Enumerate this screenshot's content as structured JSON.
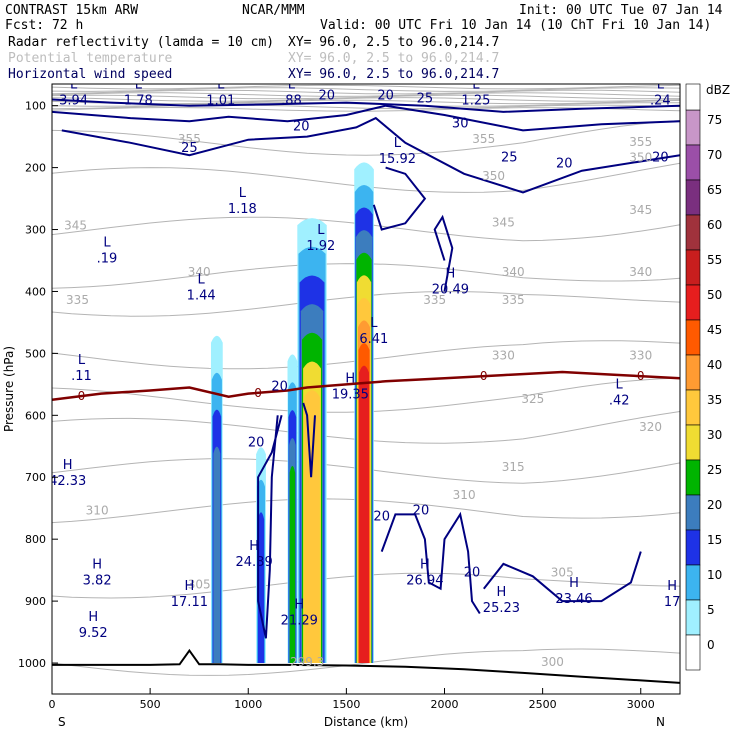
{
  "header": {
    "model": "CONTRAST 15km ARW",
    "org": "NCAR/MMM",
    "init": "Init: 00 UTC Tue 07 Jan 14",
    "fcst": "Fcst:   72 h",
    "valid": "Valid: 00 UTC Fri 10 Jan 14 (10 ChT Fri 10 Jan 14)",
    "fields": [
      {
        "name": "Radar reflectivity (lamda = 10 cm)",
        "xy": "XY=  96.0,  2.5 to  96.0,214.7"
      },
      {
        "name": "Potential temperature",
        "xy": "XY=  96.0,  2.5 to  96.0,214.7"
      },
      {
        "name": "Horizontal wind speed",
        "xy": "XY=  96.0,  2.5 to  96.0,214.7"
      }
    ]
  },
  "colors": {
    "wind": "#000080",
    "theta": "#b4b4b4",
    "freezing": "#800000",
    "terrain": "#000000"
  },
  "chart_data": {
    "type": "heatmap",
    "title": "Radar reflectivity (lamda = 10 cm)",
    "xlabel": "Distance (km)",
    "ylabel": "Pressure (hPa)",
    "xlim": [
      0,
      3200
    ],
    "ylim": [
      1050,
      65
    ],
    "x_ticks": [
      0,
      500,
      1000,
      1500,
      2000,
      2500,
      3000
    ],
    "y_ticks": [
      100,
      200,
      300,
      400,
      500,
      600,
      700,
      800,
      900,
      1000
    ],
    "x_end_labels": {
      "left": "S",
      "right": "N"
    },
    "colorbar": {
      "unit": "dBZ",
      "levels": [
        75,
        70,
        65,
        60,
        55,
        50,
        45,
        40,
        35,
        30,
        25,
        20,
        15,
        10,
        5,
        0
      ],
      "colors": [
        "#c896c8",
        "#9b4fa8",
        "#7a2f7f",
        "#a0323c",
        "#c81e1e",
        "#e61e1e",
        "#ff5a00",
        "#ff9b32",
        "#ffc83c",
        "#f0dc32",
        "#00b400",
        "#3c7dbe",
        "#1e32e6",
        "#3cb4f0",
        "#a0f0ff",
        "#ffffff"
      ]
    },
    "reflectivity_columns": [
      {
        "x0": 810,
        "x1": 870,
        "top": 470,
        "bottom": 1000,
        "core_dbz": 20
      },
      {
        "x0": 1040,
        "x1": 1090,
        "top": 650,
        "bottom": 1000,
        "core_dbz": 15
      },
      {
        "x0": 1200,
        "x1": 1250,
        "top": 500,
        "bottom": 1000,
        "core_dbz": 25
      },
      {
        "x0": 1250,
        "x1": 1400,
        "top": 280,
        "bottom": 1000,
        "core_dbz": 35
      },
      {
        "x0": 1540,
        "x1": 1640,
        "top": 190,
        "bottom": 1000,
        "core_dbz": 50
      }
    ],
    "freezing_level": {
      "label": "0",
      "x": [
        0,
        250,
        500,
        700,
        900,
        1000,
        1200,
        1300,
        1500,
        1700,
        2000,
        2300,
        2600,
        2900,
        3200
      ],
      "p": [
        575,
        565,
        560,
        555,
        570,
        565,
        560,
        555,
        550,
        545,
        540,
        535,
        530,
        535,
        540
      ]
    },
    "theta_labels": [
      {
        "text": "355",
        "x": 700,
        "p": 160
      },
      {
        "text": "355",
        "x": 2200,
        "p": 160
      },
      {
        "text": "355",
        "x": 3000,
        "p": 165
      },
      {
        "text": "350",
        "x": 2250,
        "p": 220
      },
      {
        "text": "350",
        "x": 3000,
        "p": 190
      },
      {
        "text": "345",
        "x": 120,
        "p": 300
      },
      {
        "text": "345",
        "x": 2300,
        "p": 295
      },
      {
        "text": "345",
        "x": 3000,
        "p": 275
      },
      {
        "text": "340",
        "x": 750,
        "p": 375
      },
      {
        "text": "340",
        "x": 2350,
        "p": 375
      },
      {
        "text": "340",
        "x": 3000,
        "p": 375
      },
      {
        "text": "335",
        "x": 130,
        "p": 420
      },
      {
        "text": "335",
        "x": 1950,
        "p": 420
      },
      {
        "text": "335",
        "x": 2350,
        "p": 420
      },
      {
        "text": "330",
        "x": 2300,
        "p": 510
      },
      {
        "text": "330",
        "x": 3000,
        "p": 510
      },
      {
        "text": "325",
        "x": 2450,
        "p": 580
      },
      {
        "text": "320",
        "x": 3050,
        "p": 625
      },
      {
        "text": "315",
        "x": 2350,
        "p": 690
      },
      {
        "text": "310",
        "x": 230,
        "p": 760
      },
      {
        "text": "310",
        "x": 2100,
        "p": 735
      },
      {
        "text": "305",
        "x": 750,
        "p": 880
      },
      {
        "text": "305",
        "x": 2600,
        "p": 860
      },
      {
        "text": "300",
        "x": 2550,
        "p": 1005
      },
      {
        "text": "299.3",
        "x": 1300,
        "p": 1005
      }
    ],
    "wind_labels": [
      {
        "text": "25",
        "x": 700,
        "p": 175
      },
      {
        "text": "20",
        "x": 1270,
        "p": 140
      },
      {
        "text": "20",
        "x": 1400,
        "p": 90
      },
      {
        "text": "20",
        "x": 1700,
        "p": 90
      },
      {
        "text": "25",
        "x": 1900,
        "p": 95
      },
      {
        "text": "30",
        "x": 2080,
        "p": 135
      },
      {
        "text": "25",
        "x": 2330,
        "p": 190
      },
      {
        "text": "20",
        "x": 2610,
        "p": 200
      },
      {
        "text": "20",
        "x": 3100,
        "p": 190
      },
      {
        "text": "20",
        "x": 1160,
        "p": 560
      },
      {
        "text": "20",
        "x": 1040,
        "p": 650
      },
      {
        "text": "20",
        "x": 1680,
        "p": 770
      },
      {
        "text": "20",
        "x": 1880,
        "p": 760
      },
      {
        "text": "20",
        "x": 2140,
        "p": 860
      }
    ],
    "extrema": [
      {
        "type": "L",
        "value": "3.94",
        "x": 110,
        "p": 85
      },
      {
        "type": "L",
        "value": "1.78",
        "x": 440,
        "p": 85
      },
      {
        "type": "L",
        "value": "1.01",
        "x": 860,
        "p": 85
      },
      {
        "type": "L",
        "value": ".88",
        "x": 1220,
        "p": 85
      },
      {
        "type": "L",
        "value": "1.25",
        "x": 2160,
        "p": 85
      },
      {
        "type": "L",
        "value": ".24",
        "x": 3100,
        "p": 85
      },
      {
        "type": "L",
        "value": "15.92",
        "x": 1760,
        "p": 180
      },
      {
        "type": "L",
        "value": "1.18",
        "x": 970,
        "p": 260
      },
      {
        "type": "L",
        "value": "1.92",
        "x": 1370,
        "p": 320
      },
      {
        "type": "L",
        "value": ".19",
        "x": 280,
        "p": 340
      },
      {
        "type": "L",
        "value": "1.44",
        "x": 760,
        "p": 400
      },
      {
        "type": "L",
        "value": "6.41",
        "x": 1640,
        "p": 470
      },
      {
        "type": "L",
        "value": ".11",
        "x": 150,
        "p": 530
      },
      {
        "type": "L",
        "value": ".42",
        "x": 2890,
        "p": 570
      },
      {
        "type": "H",
        "value": "20.49",
        "x": 2030,
        "p": 390
      },
      {
        "type": "H",
        "value": "19.35",
        "x": 1520,
        "p": 560
      },
      {
        "type": "H",
        "value": "42.33",
        "x": 80,
        "p": 700
      },
      {
        "type": "H",
        "value": "24.39",
        "x": 1030,
        "p": 830
      },
      {
        "type": "H",
        "value": "3.82",
        "x": 230,
        "p": 860
      },
      {
        "type": "H",
        "value": "26.94",
        "x": 1900,
        "p": 860
      },
      {
        "type": "H",
        "value": "17.11",
        "x": 700,
        "p": 895
      },
      {
        "type": "H",
        "value": "21.29",
        "x": 1260,
        "p": 925
      },
      {
        "type": "H",
        "value": "25.23",
        "x": 2290,
        "p": 905
      },
      {
        "type": "H",
        "value": "23.46",
        "x": 2660,
        "p": 890
      },
      {
        "type": "H",
        "value": "17",
        "x": 3160,
        "p": 895
      },
      {
        "type": "H",
        "value": "9.52",
        "x": 210,
        "p": 945
      }
    ],
    "terrain_profile": {
      "x": [
        0,
        500,
        650,
        700,
        750,
        850,
        1000,
        1200,
        1500,
        1800,
        2100,
        2400,
        2700,
        3000,
        3200
      ],
      "p": [
        1003,
        1003,
        1002,
        980,
        1002,
        1002,
        1003,
        1003,
        1004,
        1006,
        1010,
        1016,
        1022,
        1028,
        1032
      ]
    }
  }
}
